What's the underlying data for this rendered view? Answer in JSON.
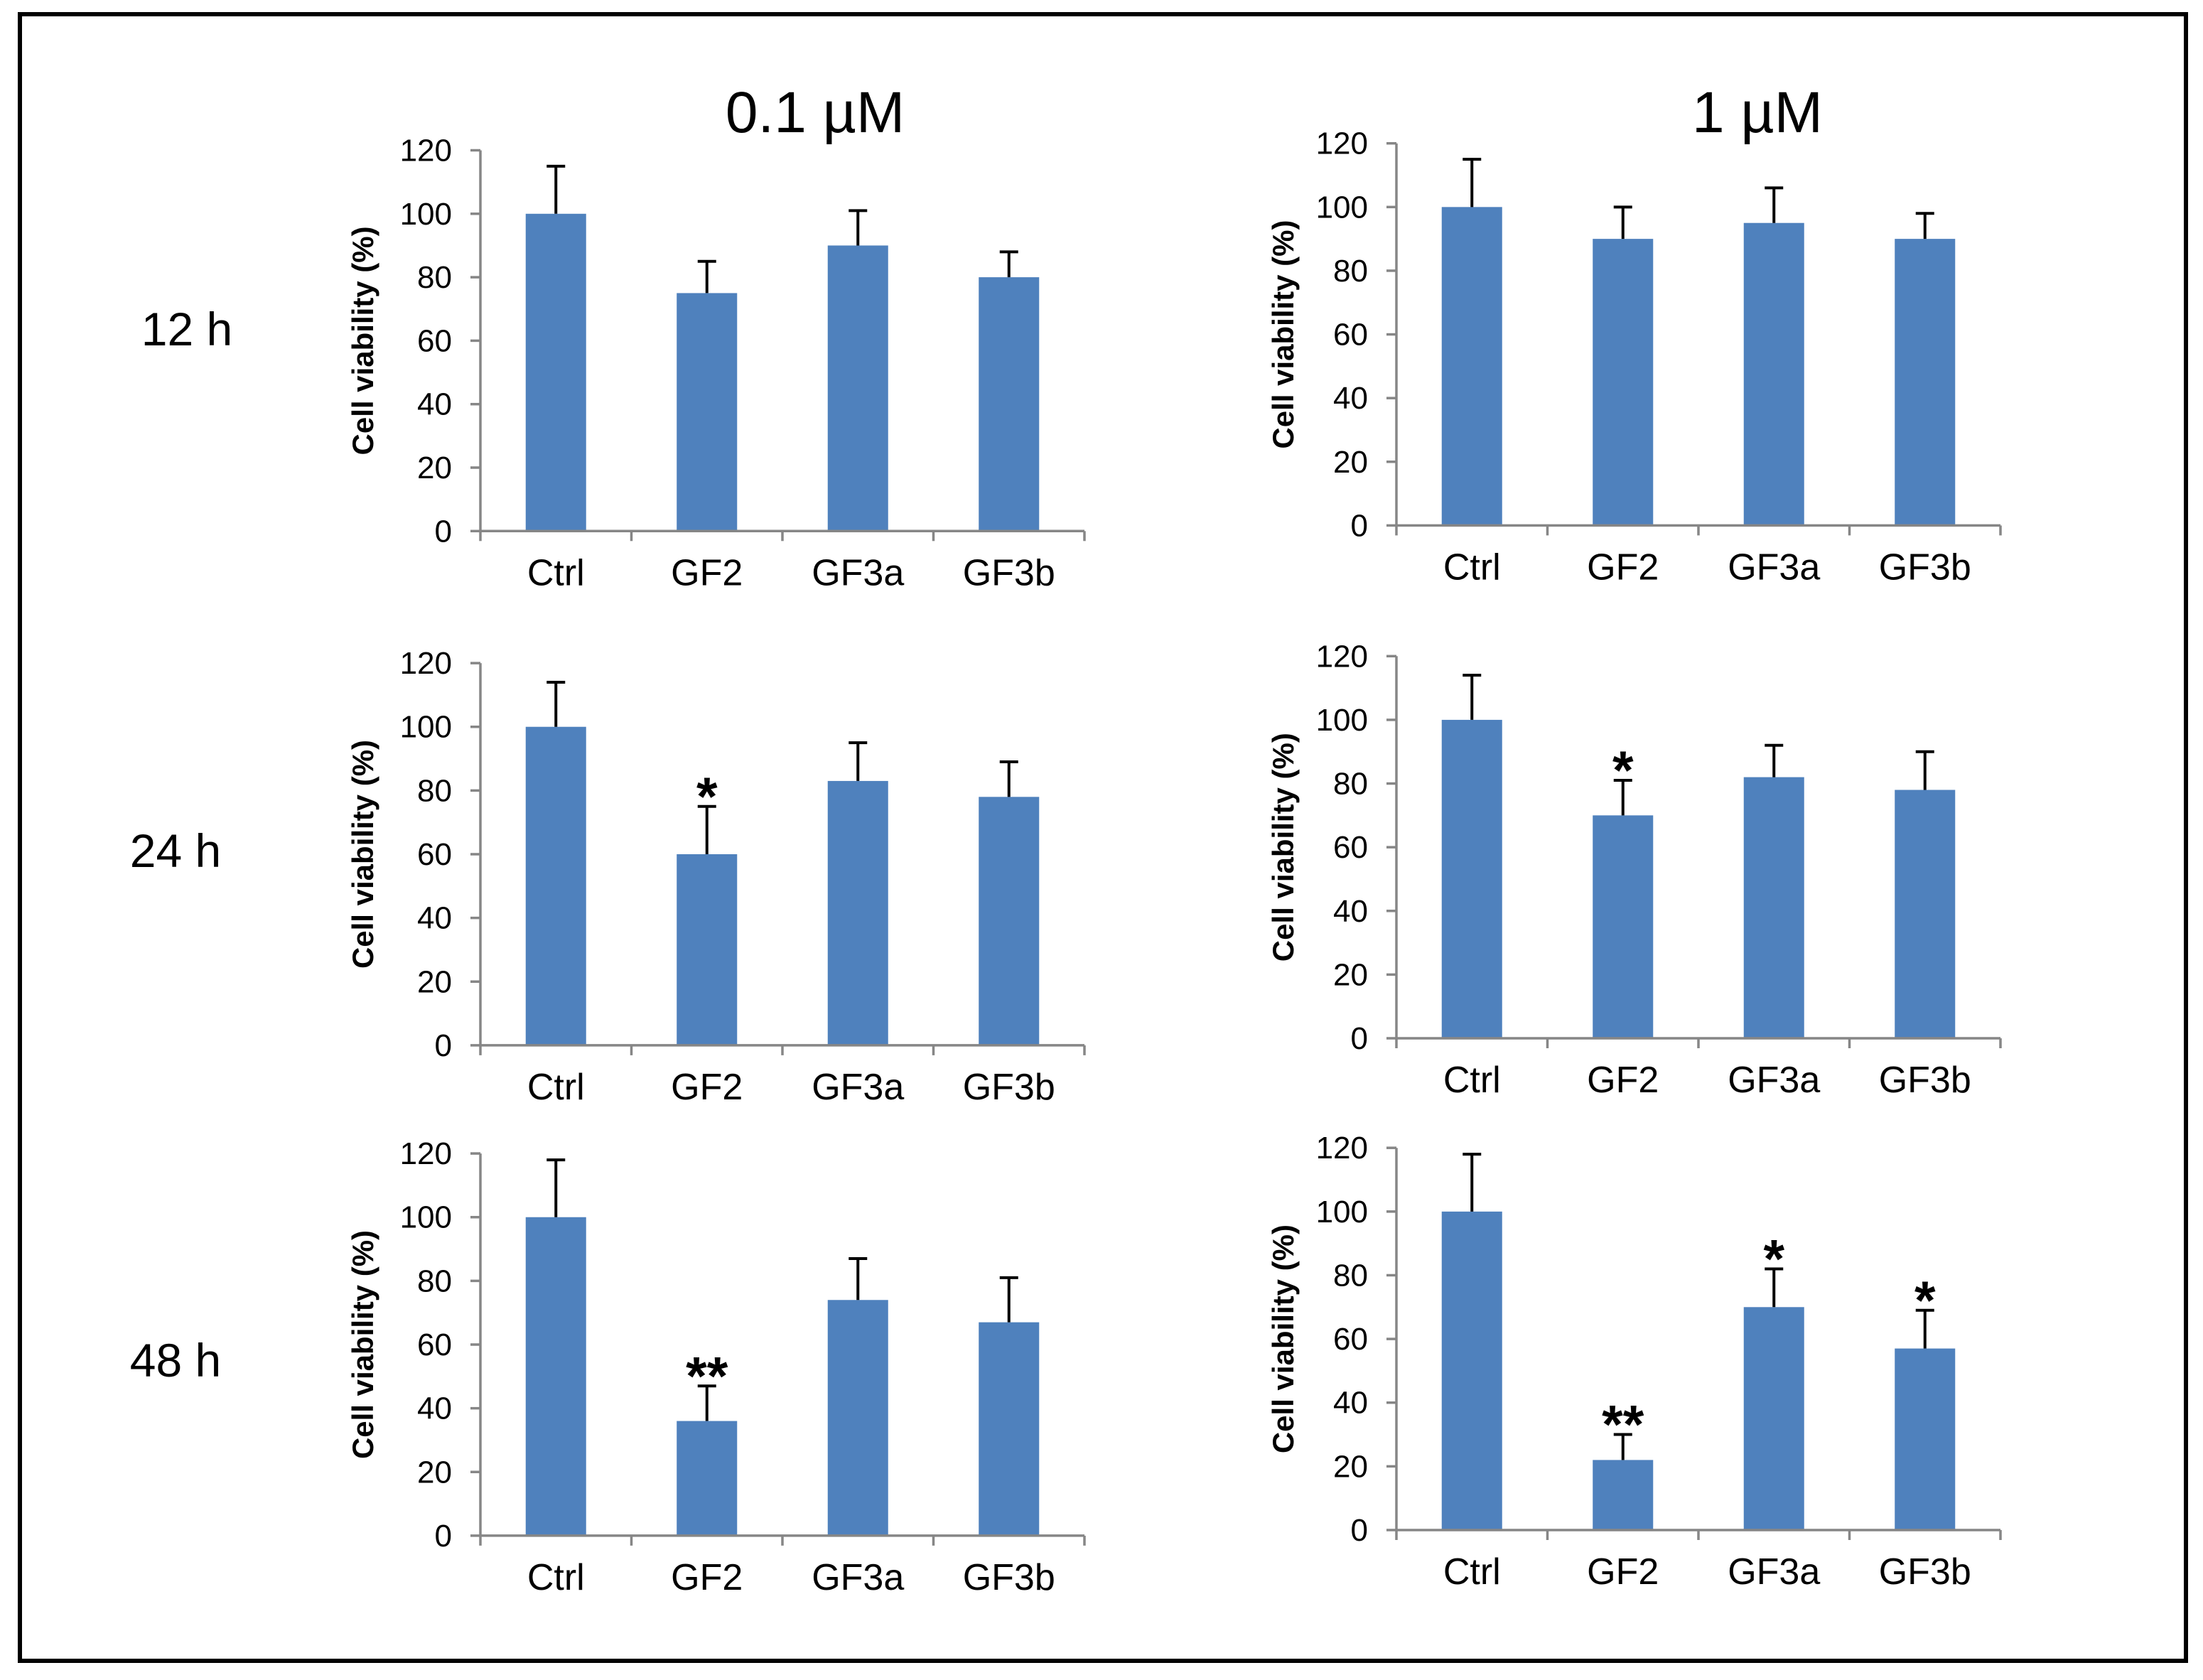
{
  "figure": {
    "column_titles": [
      "0.1 µM",
      "1 µM"
    ],
    "row_labels": [
      "12 h",
      "24 h",
      "48 h"
    ]
  },
  "colors": {
    "bar": "#4F81BD",
    "axis": "#868686",
    "error_bar": "#000000",
    "border": "#000000",
    "background": "#FFFFFF"
  },
  "chart_data": [
    {
      "type": "bar",
      "categories": [
        "Ctrl",
        "GF2",
        "GF3a",
        "GF3b"
      ],
      "values": [
        100,
        75,
        90,
        80
      ],
      "errors": [
        15,
        10,
        11,
        8
      ],
      "significance": [
        "",
        "",
        "",
        ""
      ],
      "xlabel": "",
      "ylabel": "Cell viability (%)",
      "ylim": [
        0,
        120
      ],
      "yticks": [
        0,
        20,
        40,
        60,
        80,
        100,
        120
      ],
      "grid": false
    },
    {
      "type": "bar",
      "categories": [
        "Ctrl",
        "GF2",
        "GF3a",
        "GF3b"
      ],
      "values": [
        100,
        90,
        95,
        90
      ],
      "errors": [
        15,
        10,
        11,
        8
      ],
      "significance": [
        "",
        "",
        "",
        ""
      ],
      "xlabel": "",
      "ylabel": "Cell viability (%)",
      "ylim": [
        0,
        120
      ],
      "yticks": [
        0,
        20,
        40,
        60,
        80,
        100,
        120
      ],
      "grid": false
    },
    {
      "type": "bar",
      "categories": [
        "Ctrl",
        "GF2",
        "GF3a",
        "GF3b"
      ],
      "values": [
        100,
        60,
        83,
        78
      ],
      "errors": [
        14,
        15,
        12,
        11
      ],
      "significance": [
        "",
        "*",
        "",
        ""
      ],
      "xlabel": "",
      "ylabel": "Cell viability (%)",
      "ylim": [
        0,
        120
      ],
      "yticks": [
        0,
        20,
        40,
        60,
        80,
        100,
        120
      ],
      "grid": false
    },
    {
      "type": "bar",
      "categories": [
        "Ctrl",
        "GF2",
        "GF3a",
        "GF3b"
      ],
      "values": [
        100,
        70,
        82,
        78
      ],
      "errors": [
        14,
        11,
        10,
        12
      ],
      "significance": [
        "",
        "*",
        "",
        ""
      ],
      "xlabel": "",
      "ylabel": "Cell viability (%)",
      "ylim": [
        0,
        120
      ],
      "yticks": [
        0,
        20,
        40,
        60,
        80,
        100,
        120
      ],
      "grid": false
    },
    {
      "type": "bar",
      "categories": [
        "Ctrl",
        "GF2",
        "GF3a",
        "GF3b"
      ],
      "values": [
        100,
        36,
        74,
        67
      ],
      "errors": [
        18,
        11,
        13,
        14
      ],
      "significance": [
        "",
        "**",
        "",
        ""
      ],
      "xlabel": "",
      "ylabel": "Cell viability (%)",
      "ylim": [
        0,
        120
      ],
      "yticks": [
        0,
        20,
        40,
        60,
        80,
        100,
        120
      ],
      "grid": false
    },
    {
      "type": "bar",
      "categories": [
        "Ctrl",
        "GF2",
        "GF3a",
        "GF3b"
      ],
      "values": [
        100,
        22,
        70,
        57
      ],
      "errors": [
        18,
        8,
        12,
        12
      ],
      "significance": [
        "",
        "**",
        "*",
        "*"
      ],
      "xlabel": "",
      "ylabel": "Cell viability (%)",
      "ylim": [
        0,
        120
      ],
      "yticks": [
        0,
        20,
        40,
        60,
        80,
        100,
        120
      ],
      "grid": false
    }
  ]
}
